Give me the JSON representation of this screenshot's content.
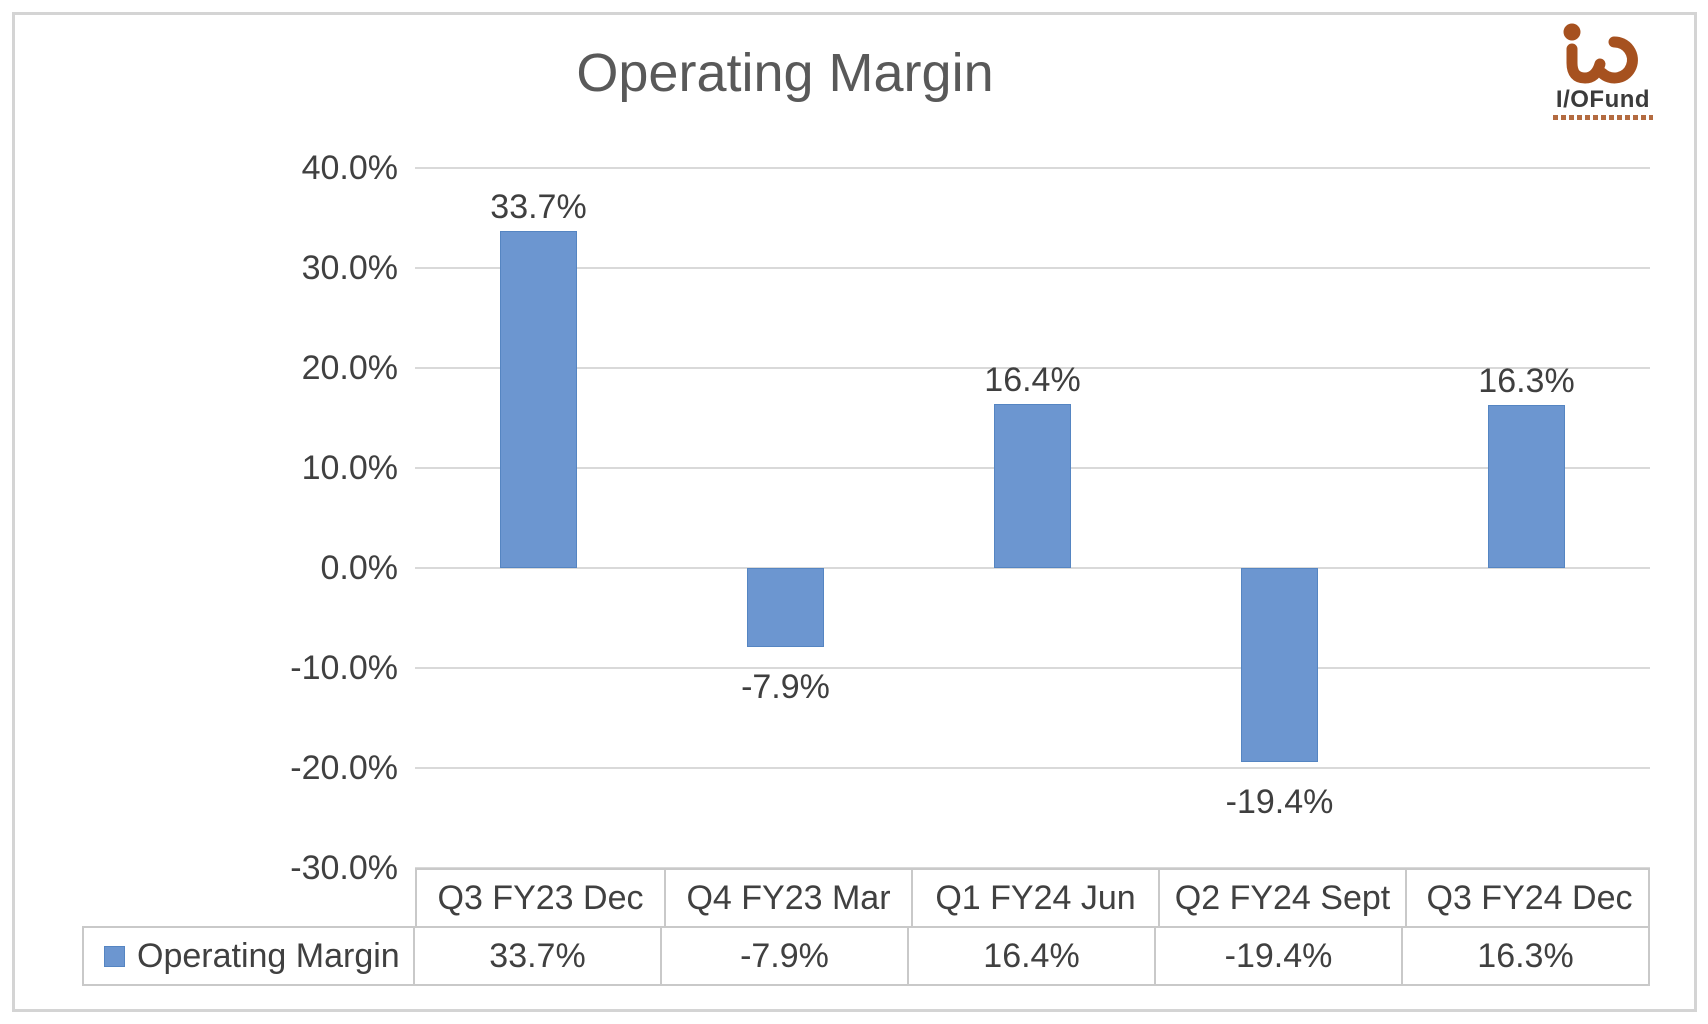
{
  "title": "Operating Margin",
  "logo": {
    "text": "I/OFund",
    "mark_color": "#a6511f",
    "text_color": "#3b3b3b"
  },
  "chart_data": {
    "type": "bar",
    "title": "Operating Margin",
    "categories": [
      "Q3 FY23 Dec",
      "Q4 FY23 Mar",
      "Q1 FY24 Jun",
      "Q2 FY24 Sept",
      "Q3 FY24 Dec"
    ],
    "series": [
      {
        "name": "Operating Margin",
        "values": [
          33.7,
          -7.9,
          16.4,
          -19.4,
          16.3
        ]
      }
    ],
    "value_labels": [
      "33.7%",
      "-7.9%",
      "16.4%",
      "-19.4%",
      "16.3%"
    ],
    "y_ticks": [
      "40.0%",
      "30.0%",
      "20.0%",
      "10.0%",
      "0.0%",
      "-10.0%",
      "-20.0%",
      "-30.0%"
    ],
    "y_tick_values": [
      40,
      30,
      20,
      10,
      0,
      -10,
      -20,
      -30
    ],
    "ylim": [
      -30,
      40
    ],
    "xlabel": "",
    "ylabel": "",
    "grid": true,
    "bar_color": "#6c96d0",
    "gridline_color": "#d9d9d9",
    "legend_position": "data-table-left",
    "data_table": true
  }
}
